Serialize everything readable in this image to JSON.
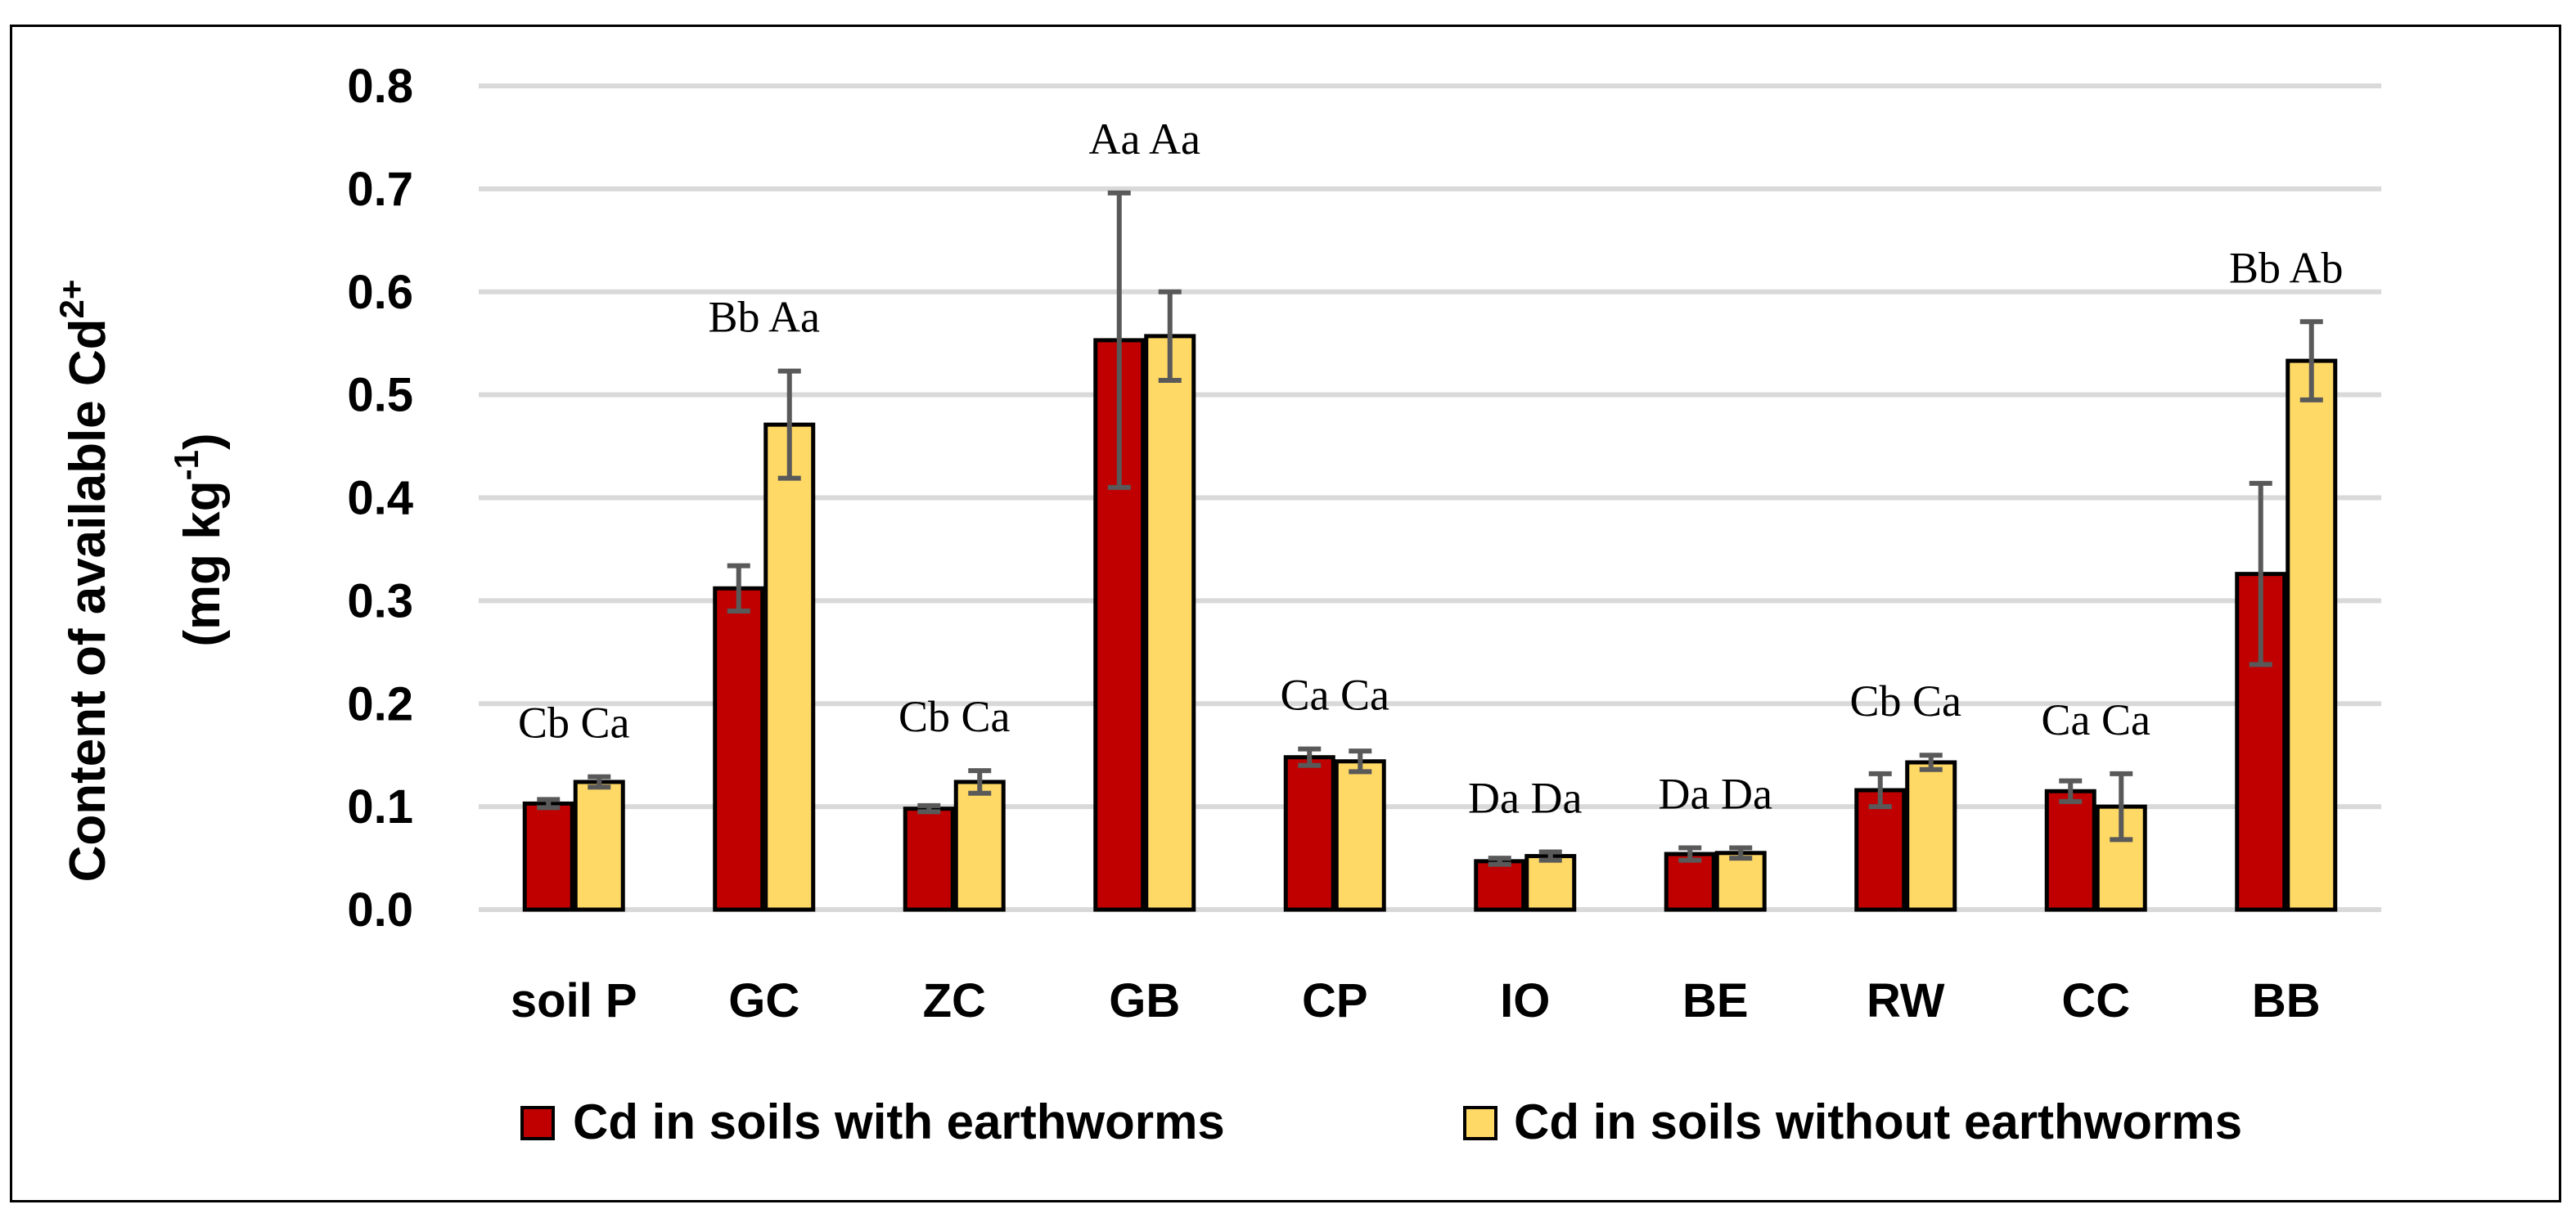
{
  "chart_data": {
    "type": "bar",
    "title": "",
    "xlabel": "",
    "ylabel": "Content of available Cd²⁺ (mg kg⁻¹)",
    "ylabel_line1": "Content of available Cd",
    "ylabel_line1_sup": "2+",
    "ylabel_line2_pre": "(mg kg",
    "ylabel_line2_sup": "-1",
    "ylabel_line2_post": ")",
    "ylim": [
      0,
      0.8
    ],
    "yticks": [
      "0.0",
      "0.1",
      "0.2",
      "0.3",
      "0.4",
      "0.5",
      "0.6",
      "0.7",
      "0.8"
    ],
    "grid": true,
    "legend_position": "bottom",
    "categories": [
      "soil P",
      "GC",
      "ZC",
      "GB",
      "CP",
      "IO",
      "BE",
      "RW",
      "CC",
      "BB"
    ],
    "series": [
      {
        "name": "Cd in soils with earthworms",
        "color": "#C00000",
        "values": [
          0.103,
          0.312,
          0.098,
          0.553,
          0.148,
          0.047,
          0.054,
          0.116,
          0.115,
          0.326
        ],
        "errors": [
          0.004,
          0.022,
          0.003,
          0.143,
          0.008,
          0.003,
          0.006,
          0.016,
          0.01,
          0.088
        ]
      },
      {
        "name": "Cd in soils without earthworms",
        "color": "#FFD966",
        "values": [
          0.124,
          0.471,
          0.124,
          0.557,
          0.144,
          0.052,
          0.055,
          0.143,
          0.1,
          0.533
        ],
        "errors": [
          0.005,
          0.052,
          0.011,
          0.043,
          0.01,
          0.004,
          0.005,
          0.007,
          0.032,
          0.038
        ]
      }
    ],
    "annotations": [
      "Cb Ca",
      "Bb Aa",
      "Cb Ca",
      "Aa Aa",
      "Ca Ca",
      "Da Da",
      "Da Da",
      "Cb Ca",
      "Ca Ca",
      "Bb Ab"
    ]
  }
}
